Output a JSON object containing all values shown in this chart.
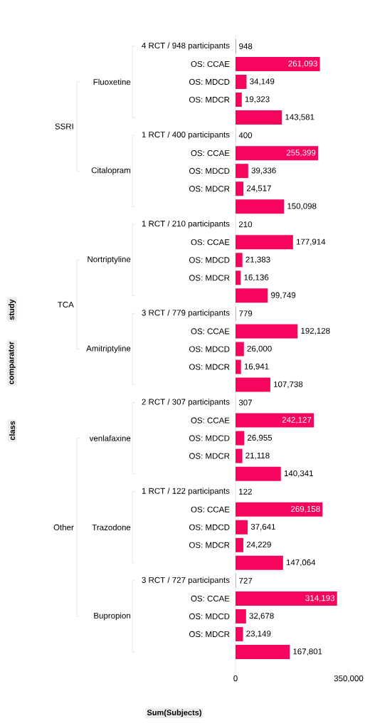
{
  "chart_data": {
    "type": "bar",
    "orientation": "horizontal",
    "color": "#f7045f",
    "value_labels": [
      "948",
      "261,093",
      "34,149",
      "19,323",
      "143,581",
      "400",
      "255,399",
      "39,336",
      "24,517",
      "150,098",
      "210",
      "177,914",
      "21,383",
      "16,136",
      "99,749",
      "779",
      "192,128",
      "26,000",
      "16,941",
      "107,738",
      "307",
      "242,127",
      "26,955",
      "21,118",
      "140,341",
      "122",
      "269,158",
      "37,641",
      "24,229",
      "147,064",
      "727",
      "314,193",
      "32,678",
      "23,149",
      "167,801"
    ],
    "xlabel": "Sum(Subjects)",
    "categories": [
      "4 RCT / 948 participants",
      "OS: CCAE",
      "OS: MDCD",
      "OS: MDCR",
      null,
      "1 RCT / 400 participants",
      "OS: CCAE",
      "OS: MDCD",
      "OS: MDCR",
      null,
      "1 RCT / 210 participants",
      "OS: CCAE",
      "OS: MDCD",
      "OS: MDCR",
      null,
      "3 RCT / 779 participants",
      "OS: CCAE",
      "OS: MDCD",
      "OS: MDCR",
      null,
      "2 RCT / 307 participants",
      "OS: CCAE",
      "OS: MDCD",
      "OS: MDCR",
      null,
      "1 RCT / 122 participants",
      "OS: CCAE",
      "OS: MDCD",
      "OS: MDCR",
      null,
      "3 RCT / 727 participants",
      "OS: CCAE",
      "OS: MDCD",
      "OS: MDCR",
      null
    ],
    "values": [
      948,
      261093,
      34149,
      19323,
      143581,
      400,
      255399,
      39336,
      24517,
      150098,
      210,
      177914,
      21383,
      16136,
      99749,
      779,
      192128,
      26000,
      16941,
      107738,
      307,
      242127,
      26955,
      21118,
      140341,
      122,
      269158,
      37641,
      24229,
      147064,
      727,
      314193,
      32678,
      23149,
      167801
    ],
    "xlim": [
      0,
      350000
    ],
    "xticks": [
      0,
      {
        "value": 350000,
        "label": "350,000"
      }
    ],
    "annotations": [
      "SSRI",
      "TCA",
      "Other",
      "Fluoxetine",
      "Citalopram",
      "Nortriptyline",
      "Amitriptyline",
      "venlafaxine",
      "Trazodone",
      "Bupropion",
      "study",
      "comparator",
      "class"
    ]
  }
}
